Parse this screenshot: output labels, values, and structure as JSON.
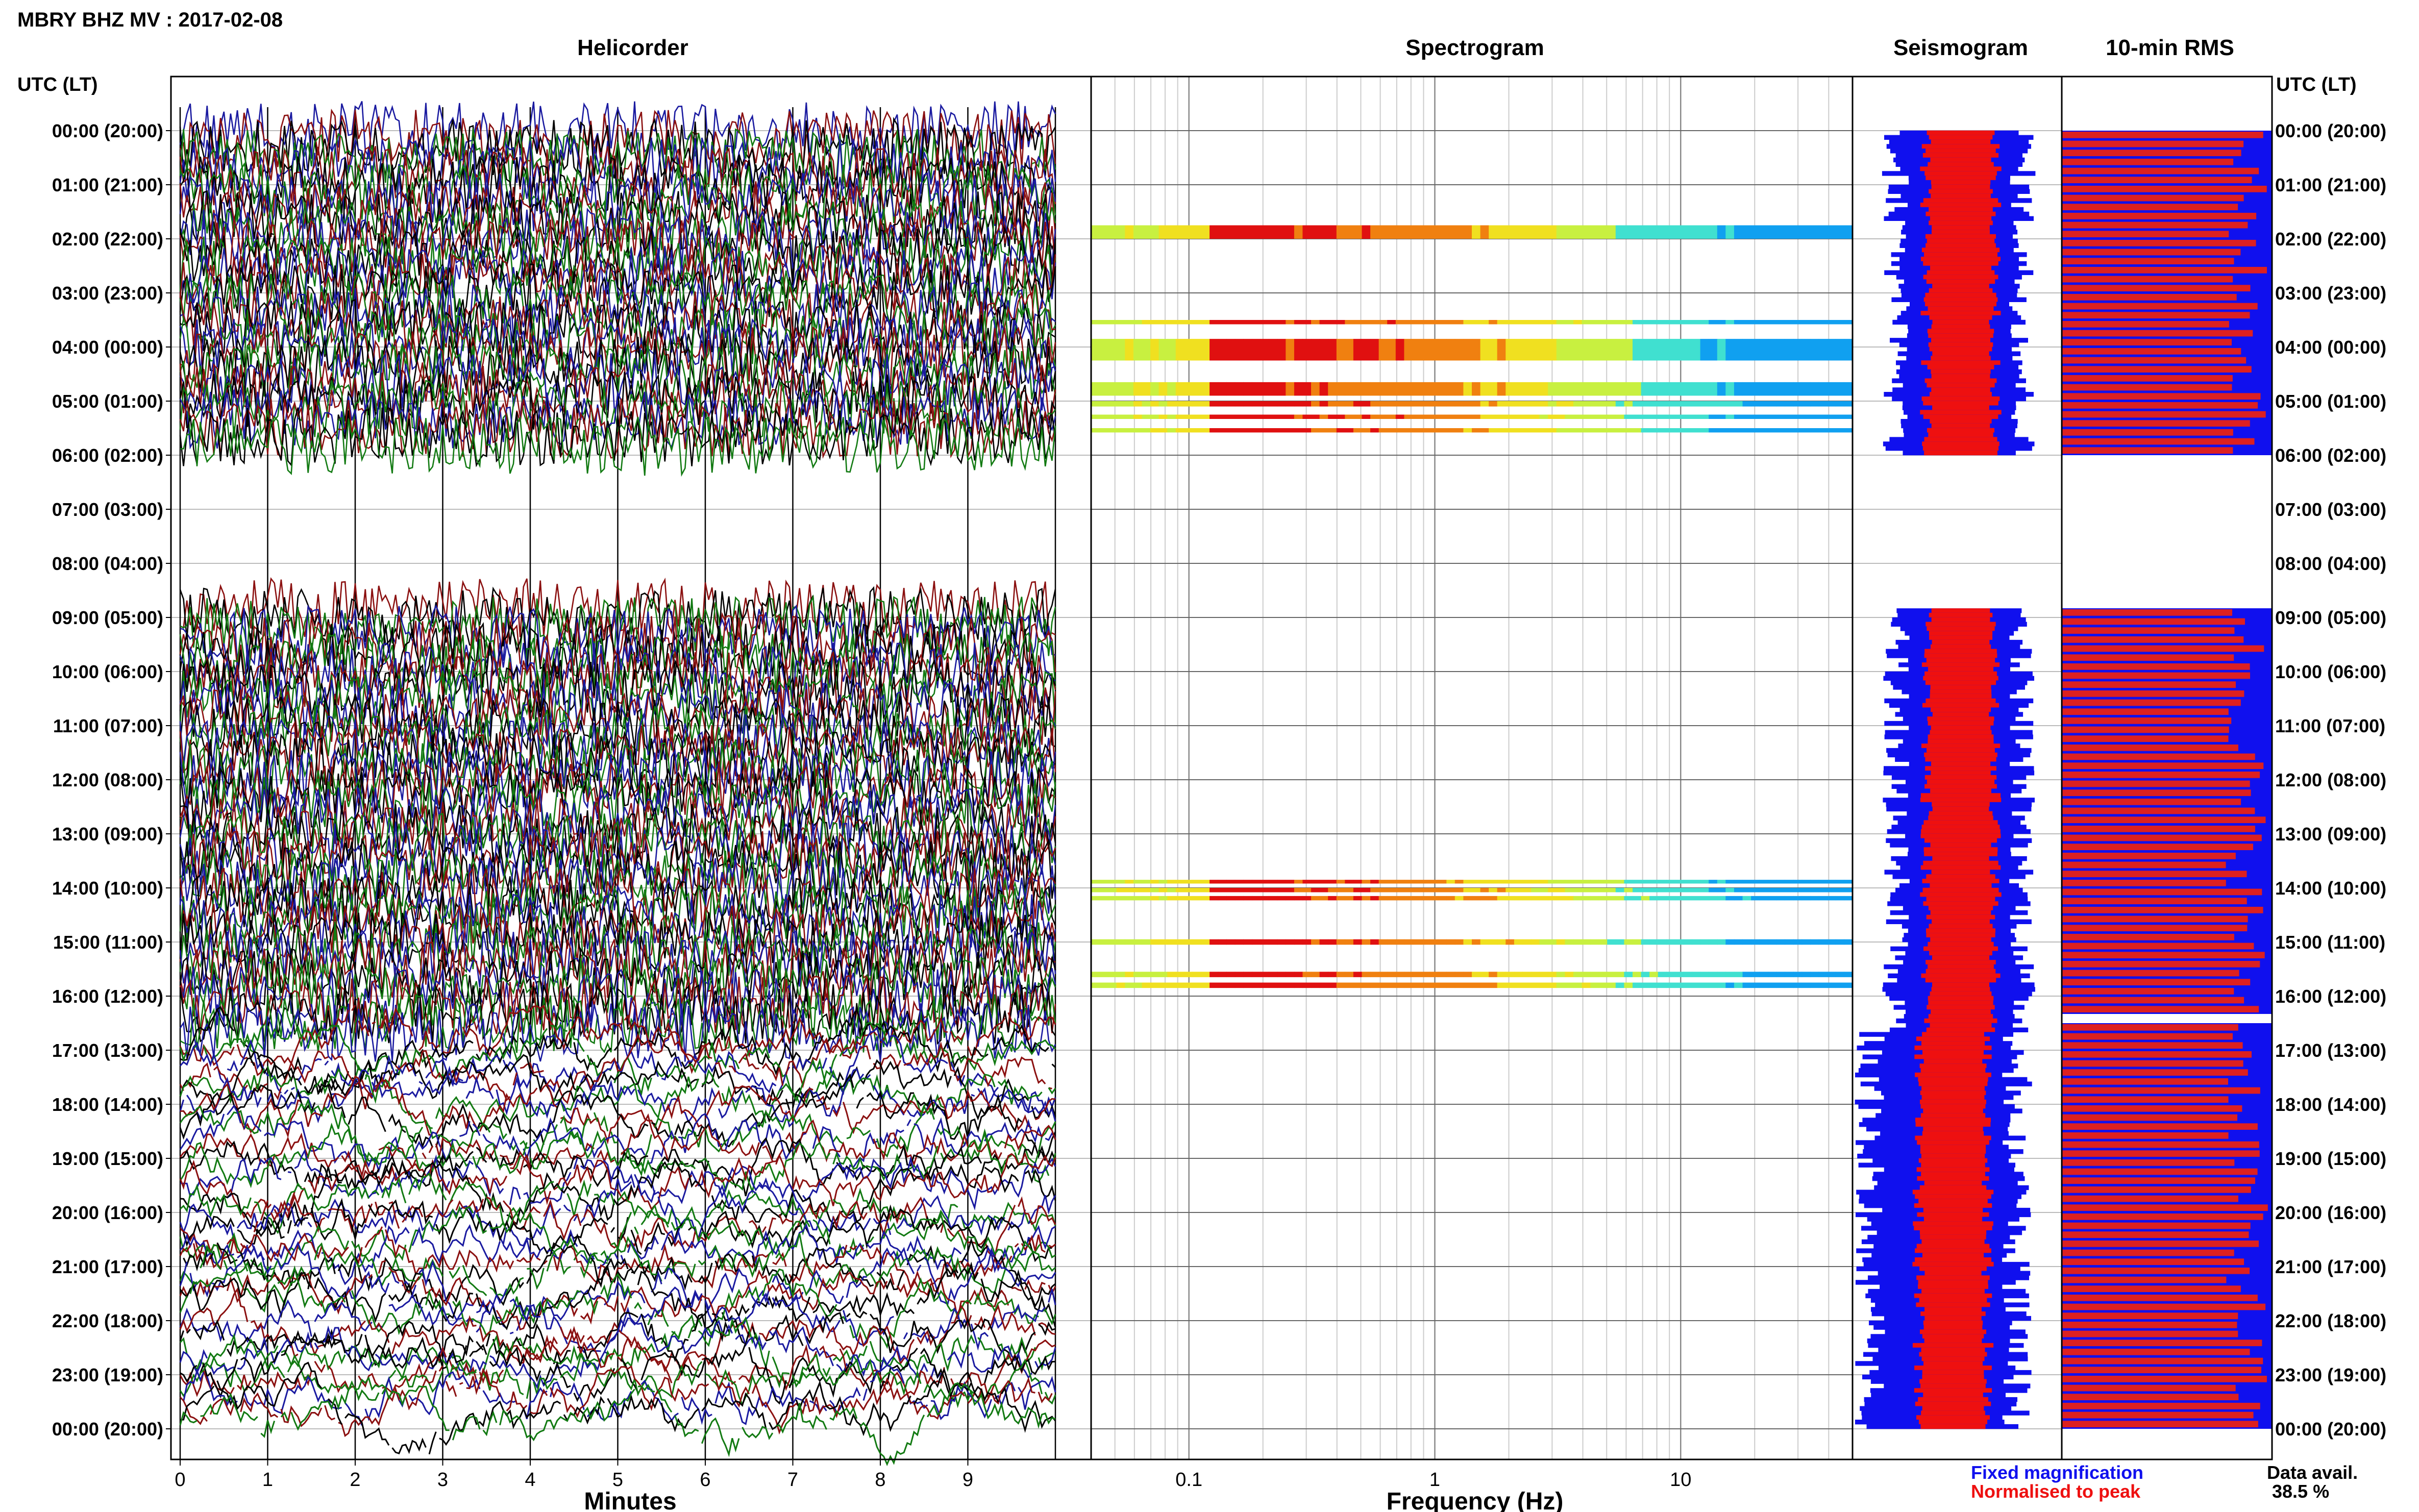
{
  "header": {
    "title": "MBRY BHZ MV : 2017-02-08"
  },
  "panels": {
    "helicorder": "Helicorder",
    "spectrogram": "Spectrogram",
    "seismogram": "Seismogram",
    "rms": "10-min RMS"
  },
  "axis": {
    "left_header": "UTC (LT)",
    "right_header": "UTC (LT)",
    "minutes_label": "Minutes",
    "frequency_label": "Frequency (Hz)",
    "minute_ticks": [
      "0",
      "1",
      "2",
      "3",
      "4",
      "5",
      "6",
      "7",
      "8",
      "9"
    ],
    "frequency_ticks": [
      "0.1",
      "1",
      "10"
    ]
  },
  "time_labels": [
    "00:00 (20:00)",
    "01:00 (21:00)",
    "02:00 (22:00)",
    "03:00 (23:00)",
    "04:00 (00:00)",
    "05:00 (01:00)",
    "06:00 (02:00)",
    "07:00 (03:00)",
    "08:00 (04:00)",
    "09:00 (05:00)",
    "10:00 (06:00)",
    "11:00 (07:00)",
    "12:00 (08:00)",
    "13:00 (09:00)",
    "14:00 (10:00)",
    "15:00 (11:00)",
    "16:00 (12:00)",
    "17:00 (13:00)",
    "18:00 (14:00)",
    "19:00 (15:00)",
    "20:00 (16:00)",
    "21:00 (17:00)",
    "22:00 (18:00)",
    "23:00 (19:00)",
    "00:00 (20:00)"
  ],
  "legend": {
    "fixed": "Fixed magnification",
    "normalised": "Normalised to peak",
    "fixed_color": "#1010ee",
    "normalised_color": "#ee1010"
  },
  "availability": {
    "label": "Data avail.",
    "value": "38.5 %"
  },
  "colors": {
    "trace_colors": [
      "#1a1aa0",
      "#8b1010",
      "#000000",
      "#127a12"
    ],
    "rms_fixed": "#1010ee",
    "rms_normalised": "#dd2020"
  },
  "chart_data": {
    "type": "heatmap",
    "x_minutes_range": [
      0,
      10
    ],
    "frequency_range_hz": [
      0.04,
      50
    ],
    "frequency_scale": "log",
    "data_gaps_utc_hours": [
      [
        6.0,
        8.83
      ]
    ],
    "traces_per_hour": 6,
    "spectrogram_bands_utc_hours": [
      [
        1.75,
        2.0
      ],
      [
        3.5,
        3.58
      ],
      [
        3.85,
        4.25
      ],
      [
        4.65,
        4.9
      ],
      [
        5.0,
        5.1
      ],
      [
        5.25,
        5.33
      ],
      [
        5.5,
        5.58
      ],
      [
        13.85,
        13.92
      ],
      [
        14.0,
        14.08
      ],
      [
        14.15,
        14.23
      ],
      [
        14.95,
        15.05
      ],
      [
        15.55,
        15.65
      ],
      [
        15.75,
        15.85
      ]
    ],
    "rms_segments_utc_hours": [
      [
        0.0,
        6.0
      ],
      [
        8.83,
        16.33
      ],
      [
        16.5,
        24.0
      ]
    ]
  }
}
